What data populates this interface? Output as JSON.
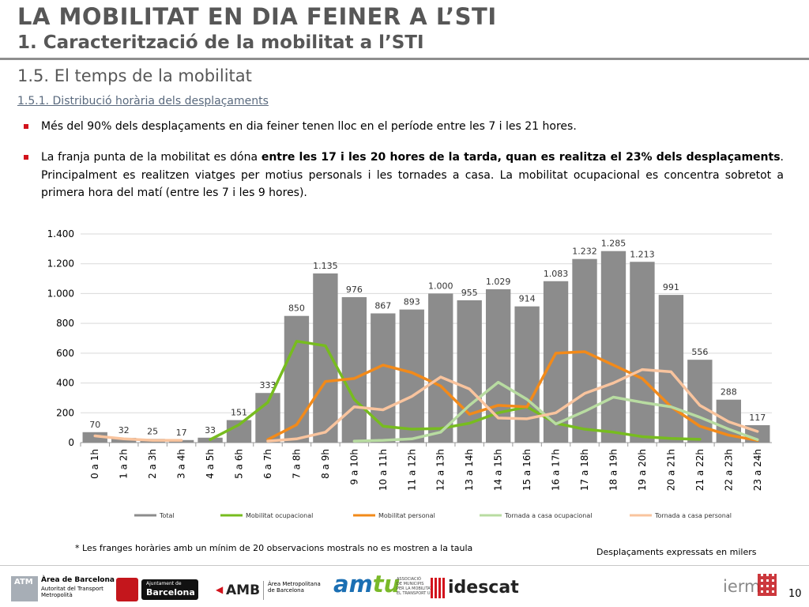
{
  "header": {
    "title": "LA MOBILITAT EN DIA FEINER A L’STI",
    "subtitle": "1. Caracterització de la mobilitat a l’STI",
    "section": "1.5. El temps de la mobilitat",
    "subsection": "1.5.1. Distribució horària dels desplaçaments"
  },
  "bullets": {
    "b1": "Més del 90% dels desplaçaments en dia feiner tenen lloc en el període entre les 7 i les 21 hores.",
    "b2_pre": "La franja punta de la mobilitat es dóna ",
    "b2_bold": "entre les 17 i les 20 hores de la tarda, quan es realitza el 23% dels desplaçaments",
    "b2_post": ". Principalment es realitzen viatges per motius personals i les tornades a casa. La mobilitat ocupacional es concentra sobretot a primera hora del matí (entre les 7 i les 9 hores)."
  },
  "chart_data": {
    "type": "bar",
    "categories": [
      "0 a 1h",
      "1 a 2h",
      "2 a 3h",
      "3 a 4h",
      "4 a 5h",
      "5 a 6h",
      "6 a 7h",
      "7 a 8h",
      "8 a 9h",
      "9 a 10h",
      "10 a 11h",
      "11 a 12h",
      "12 a 13h",
      "13 a 14h",
      "14 a 15h",
      "15 a 16h",
      "16 a 17h",
      "17 a 18h",
      "18 a 19h",
      "19 a 20h",
      "20 a 21h",
      "21 a 22h",
      "22 a 23h",
      "23 a 24h"
    ],
    "ylim": [
      0,
      1400
    ],
    "yticks": [
      0,
      200,
      400,
      600,
      800,
      1000,
      1200,
      1400
    ],
    "ytick_labels": [
      "0",
      "200",
      "400",
      "600",
      "800",
      "1.000",
      "1.200",
      "1.400"
    ],
    "grid": true,
    "legend_position": "bottom",
    "bar_series": {
      "name": "Total",
      "color": "#8c8c8c",
      "values": [
        70,
        32,
        25,
        17,
        33,
        151,
        333,
        850,
        1135,
        976,
        867,
        893,
        1000,
        955,
        1029,
        914,
        1083,
        1232,
        1285,
        1213,
        991,
        556,
        288,
        117
      ],
      "labels": [
        "70",
        "32",
        "25",
        "17",
        "33",
        "151",
        "333",
        "850",
        "1.135",
        "976",
        "867",
        "893",
        "1.000",
        "955",
        "1.029",
        "914",
        "1.083",
        "1.232",
        "1.285",
        "1.213",
        "991",
        "556",
        "288",
        "117"
      ]
    },
    "series": [
      {
        "name": "Mobilitat ocupacional",
        "type": "line",
        "color": "#77bc1f",
        "values": [
          null,
          null,
          null,
          null,
          20,
          120,
          270,
          680,
          650,
          290,
          110,
          90,
          95,
          130,
          200,
          240,
          130,
          90,
          70,
          40,
          28,
          22,
          null,
          null
        ]
      },
      {
        "name": "Mobilitat personal",
        "type": "line",
        "color": "#f28a1a",
        "values": [
          null,
          null,
          null,
          null,
          null,
          null,
          20,
          120,
          410,
          430,
          520,
          470,
          380,
          190,
          250,
          240,
          600,
          610,
          520,
          430,
          240,
          110,
          50,
          15
        ]
      },
      {
        "name": "Tornada a casa ocupacional",
        "type": "line",
        "color": "#b8dca1",
        "values": [
          null,
          null,
          null,
          null,
          null,
          null,
          null,
          null,
          null,
          10,
          15,
          25,
          70,
          250,
          405,
          290,
          125,
          210,
          305,
          270,
          240,
          170,
          90,
          20
        ]
      },
      {
        "name": "Tornada a casa personal",
        "type": "line",
        "color": "#f9c49e",
        "values": [
          45,
          25,
          15,
          15,
          null,
          null,
          10,
          25,
          70,
          240,
          220,
          310,
          440,
          360,
          165,
          160,
          200,
          330,
          400,
          490,
          475,
          250,
          140,
          75
        ]
      }
    ]
  },
  "notes": {
    "footnote": "* Les franges horàries amb un mínim de 20 observacions mostrals no es mostren a la taula",
    "units": "Desplaçaments expressats en milers"
  },
  "footer": {
    "atm_badge": "ATM",
    "atm_title": "Àrea de Barcelona",
    "atm_desc1": "Autoritat del Transport",
    "atm_desc2": "Metropolità",
    "bcn_small": "Ajuntament de",
    "bcn_big": "Barcelona",
    "amb_word": "AMB",
    "amb_desc1": "Àrea Metropolitana",
    "amb_desc2": "de Barcelona",
    "amtu_a": "am",
    "amtu_b": "tu",
    "amtu_desc1": "ASSOCIACIÓ",
    "amtu_desc2": "DE MUNICIPIS",
    "amtu_desc3": "PER LA MOBILITAT I",
    "amtu_desc4": "EL TRANSPORT URBÀ",
    "idescat": "idescat",
    "ierm": "ierm",
    "page": "10"
  }
}
